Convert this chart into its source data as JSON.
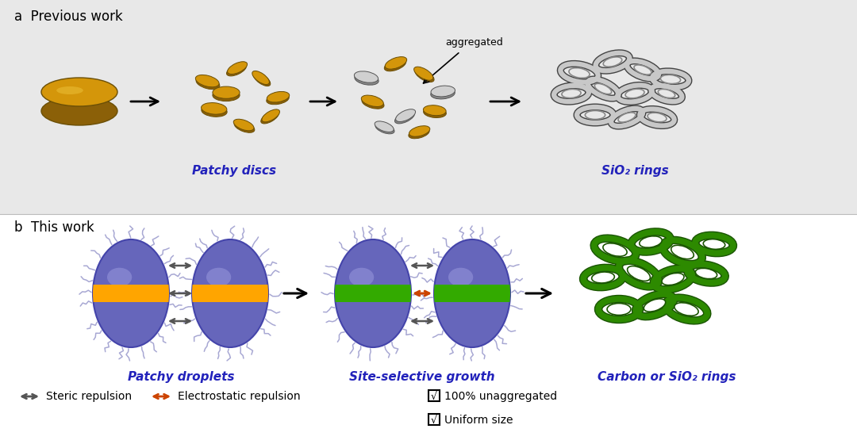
{
  "fig_width": 10.8,
  "fig_height": 5.6,
  "dpi": 100,
  "bg_color_top": "#e8e8e8",
  "bg_color_bottom": "#ffffff",
  "panel_a_label": "a  Previous work",
  "panel_b_label": "b  This work",
  "label_fontsize": 12,
  "patchy_discs_label": "Patchy discs",
  "sio2_rings_label": "SiO₂ rings",
  "patchy_droplets_label": "Patchy droplets",
  "site_selective_label": "Site-selective growth",
  "carbon_rings_label": "Carbon or SiO₂ rings",
  "aggregated_label": "aggregated",
  "blue_label_color": "#2222bb",
  "gold_color": "#D4960A",
  "gold_dark": "#8B6008",
  "silver_color": "#C8C8C8",
  "silver_dark": "#707070",
  "sphere_color_main": "#6666bb",
  "sphere_color_edge": "#4444aa",
  "sphere_highlight": "#9999dd",
  "green_color": "#2d8a00",
  "green_dark": "#1a5500",
  "orange_band": "#FFA500",
  "green_band": "#33aa00",
  "orange_arrow": "#cc4400",
  "gray_arrow": "#555555",
  "spike_color": "#9999cc",
  "steric_label": "Steric repulsion",
  "electrostatic_label": "Electrostatic repulsion",
  "unaggregated_label": "100% unaggregated",
  "uniform_label": "Uniform size",
  "text_fontsize": 10,
  "sub_label_fontsize": 11
}
